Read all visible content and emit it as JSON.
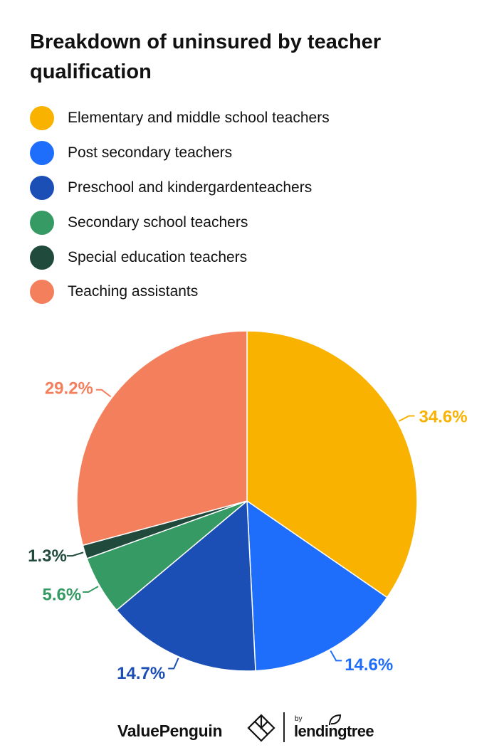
{
  "chart_data": {
    "type": "pie",
    "title": "Breakdown of uninsured by teacher qualification",
    "legend_position": "top",
    "slices": [
      {
        "label": "Elementary and middle school teachers",
        "value": 34.6,
        "value_label": "34.6%",
        "color": "#F9B200"
      },
      {
        "label": "Post secondary teachers",
        "value": 14.6,
        "value_label": "14.6%",
        "color": "#1F6EFB"
      },
      {
        "label": "Preschool and kindergardenteachers",
        "value": 14.7,
        "value_label": "14.7%",
        "color": "#1B4FB5"
      },
      {
        "label": "Secondary school teachers",
        "value": 5.6,
        "value_label": "5.6%",
        "color": "#359A63"
      },
      {
        "label": "Special education teachers",
        "value": 1.3,
        "value_label": "1.3%",
        "color": "#1F4A3C"
      },
      {
        "label": "Teaching assistants",
        "value": 29.2,
        "value_label": "29.2%",
        "color": "#F47F5C"
      }
    ]
  },
  "footer": {
    "brand": "ValuePenguin",
    "by": "by",
    "partner": "lendingtree"
  }
}
